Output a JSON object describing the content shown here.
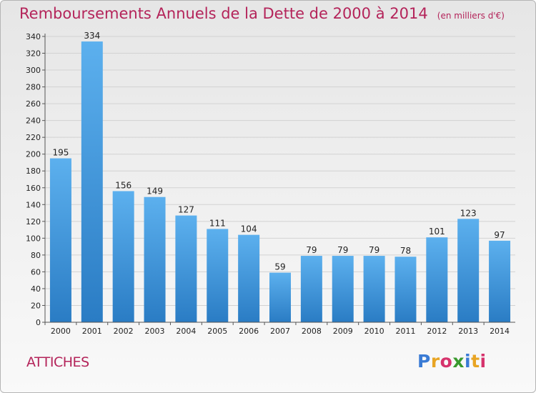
{
  "header": {
    "title": "Remboursements Annuels de la Dette de 2000 à 2014",
    "subtitle": "(en milliers d'€)"
  },
  "commune": "ATTICHES",
  "logo": {
    "letters": [
      "P",
      "r",
      "o",
      "x",
      "i",
      "t",
      "i"
    ],
    "colors": [
      "#3a7bd5",
      "#e8a524",
      "#d6336c",
      "#3a9a2e",
      "#3a7bd5",
      "#e8a524",
      "#d6336c"
    ]
  },
  "chart_data": {
    "type": "bar",
    "title": "Remboursements Annuels de la Dette de 2000 à 2014",
    "subtitle": "(en milliers d'€)",
    "categories": [
      "2000",
      "2001",
      "2002",
      "2003",
      "2004",
      "2005",
      "2006",
      "2007",
      "2008",
      "2009",
      "2010",
      "2011",
      "2012",
      "2013",
      "2014"
    ],
    "values": [
      195,
      334,
      156,
      149,
      127,
      111,
      104,
      59,
      79,
      79,
      79,
      78,
      101,
      123,
      97
    ],
    "ylim": [
      0,
      340
    ],
    "yticks": [
      0,
      20,
      40,
      60,
      80,
      100,
      120,
      140,
      160,
      180,
      200,
      220,
      240,
      260,
      280,
      300,
      320,
      340
    ],
    "grid": true,
    "bar_color": "#4a9fe3"
  }
}
